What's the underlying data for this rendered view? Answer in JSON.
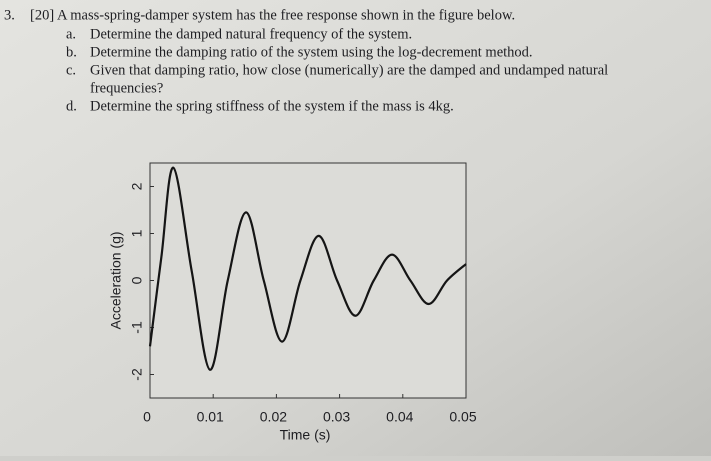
{
  "problem": {
    "number": "3.",
    "intro": "[20] A mass-spring-damper system has the free response shown in the figure below.",
    "items": [
      {
        "letter": "a.",
        "lines": [
          "Determine the damped natural frequency of the system."
        ]
      },
      {
        "letter": "b.",
        "lines": [
          "Determine the damping ratio of the system using the log-decrement method."
        ]
      },
      {
        "letter": "c.",
        "lines": [
          "Given that damping ratio, how close (numerically) are the damped and undamped natural",
          "frequencies?"
        ]
      },
      {
        "letter": "d.",
        "lines": [
          "Determine the spring stiffness of the system if the mass is 4kg."
        ]
      }
    ]
  },
  "chart_data": {
    "type": "line",
    "xlabel": "Time (s)",
    "ylabel": "Acceleration (g)",
    "x": [
      0,
      0.0018,
      0.0037,
      0.0066,
      0.0095,
      0.0123,
      0.0152,
      0.018,
      0.0209,
      0.0238,
      0.0267,
      0.0296,
      0.0325,
      0.0354,
      0.0383,
      0.0412,
      0.0441,
      0.047,
      0.05
    ],
    "values": [
      -1.4,
      0.5,
      2.4,
      0.2,
      -1.9,
      0,
      1.45,
      0,
      -1.3,
      0,
      0.95,
      0,
      -0.75,
      0,
      0.55,
      0,
      -0.5,
      0,
      0.35
    ],
    "color": "#151515",
    "xlim": [
      0,
      0.05
    ],
    "xticks": [
      0,
      0.01,
      0.02,
      0.03,
      0.04,
      0.05
    ],
    "ylim": [
      -2.5,
      2.5
    ],
    "yticks": [
      -2,
      -1,
      0,
      1,
      2
    ]
  }
}
